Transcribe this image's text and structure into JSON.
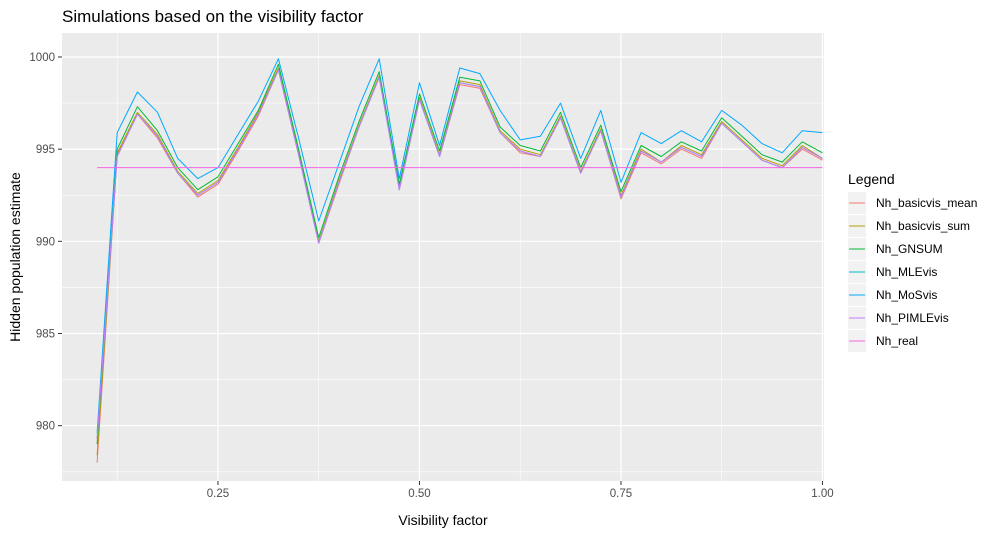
{
  "chart_data": {
    "type": "line",
    "title": "Simulations based on the visibility factor",
    "xlabel": "Visibility factor",
    "ylabel": "Hidden population estimate",
    "xlim": [
      0.1,
      1.0
    ],
    "ylim": [
      977.0,
      1001.3
    ],
    "x_ticks": [
      0.25,
      0.5,
      0.75,
      1.0
    ],
    "x_tick_labels": [
      "0.25",
      "0.50",
      "0.75",
      "1.00"
    ],
    "y_ticks": [
      980,
      985,
      990,
      995,
      1000
    ],
    "y_tick_labels": [
      "980",
      "985",
      "990",
      "995",
      "1000"
    ],
    "grid": true,
    "legend_title": "Legend",
    "legend_position": "right",
    "x": [
      0.1,
      0.125,
      0.15,
      0.175,
      0.2,
      0.225,
      0.25,
      0.275,
      0.3,
      0.325,
      0.35,
      0.375,
      0.4,
      0.425,
      0.45,
      0.475,
      0.5,
      0.525,
      0.55,
      0.575,
      0.6,
      0.625,
      0.65,
      0.675,
      0.7,
      0.725,
      0.75,
      0.775,
      0.8,
      0.825,
      0.85,
      0.875,
      0.9,
      0.925,
      0.95,
      0.975,
      1.0
    ],
    "series": [
      {
        "name": "Nh_basicvis_mean",
        "color": "#F8766D",
        "values": [
          978.0,
          994.7,
          996.9,
          995.6,
          993.7,
          992.4,
          993.1,
          994.9,
          996.8,
          999.3,
          994.7,
          989.9,
          993.1,
          996.2,
          998.9,
          992.8,
          997.7,
          994.6,
          998.5,
          998.3,
          995.9,
          994.8,
          994.6,
          996.7,
          993.7,
          996.0,
          992.3,
          994.8,
          994.2,
          995.0,
          994.5,
          996.4,
          995.4,
          994.4,
          994.0,
          995.0,
          994.4
        ]
      },
      {
        "name": "Nh_basicvis_sum",
        "color": "#B79F00",
        "values": [
          978.4,
          994.8,
          997.0,
          995.8,
          993.8,
          992.6,
          993.3,
          995.1,
          997.0,
          999.4,
          994.8,
          990.0,
          993.3,
          996.3,
          999.0,
          992.9,
          997.8,
          994.7,
          998.7,
          998.5,
          996.0,
          995.0,
          994.7,
          996.8,
          993.8,
          996.1,
          992.5,
          995.0,
          994.3,
          995.2,
          994.7,
          996.5,
          995.5,
          994.5,
          994.1,
          995.2,
          994.5
        ]
      },
      {
        "name": "Nh_GNSUM",
        "color": "#00BA38",
        "values": [
          979.0,
          995.0,
          997.3,
          996.0,
          994.0,
          992.8,
          993.5,
          995.3,
          997.1,
          999.6,
          995.0,
          990.2,
          993.5,
          996.5,
          999.2,
          993.1,
          998.0,
          994.9,
          998.9,
          998.7,
          996.2,
          995.2,
          994.9,
          997.0,
          994.0,
          996.3,
          992.7,
          995.2,
          994.6,
          995.4,
          994.9,
          996.7,
          995.7,
          994.7,
          994.3,
          995.4,
          994.8
        ]
      },
      {
        "name": "Nh_MLEvis",
        "color": "#00BFC4",
        "values": [
          979.3,
          994.6,
          996.9,
          995.7,
          993.7,
          992.5,
          993.2,
          995.0,
          996.9,
          999.3,
          994.7,
          989.9,
          993.2,
          996.2,
          998.9,
          992.8,
          997.7,
          994.6,
          998.6,
          998.4,
          995.9,
          994.9,
          994.6,
          996.7,
          993.7,
          996.0,
          992.4,
          994.9,
          994.3,
          995.1,
          994.6,
          996.4,
          995.4,
          994.4,
          994.0,
          995.1,
          994.5
        ]
      },
      {
        "name": "Nh_MoSvis",
        "color": "#00A9FF",
        "values": [
          979.6,
          995.9,
          998.1,
          997.0,
          994.5,
          993.4,
          994.0,
          995.8,
          997.6,
          999.9,
          995.6,
          991.1,
          994.2,
          997.3,
          999.9,
          993.4,
          998.6,
          995.2,
          999.4,
          999.1,
          997.1,
          995.5,
          995.7,
          997.5,
          994.5,
          997.1,
          993.2,
          995.9,
          995.3,
          996.0,
          995.4,
          997.1,
          996.3,
          995.3,
          994.8,
          996.0,
          995.9
        ]
      },
      {
        "name": "Nh_PIMLEvis",
        "color": "#C77CFF",
        "values": [
          979.3,
          994.6,
          996.9,
          995.7,
          993.7,
          992.5,
          993.2,
          995.0,
          996.9,
          999.3,
          994.7,
          989.9,
          993.2,
          996.2,
          998.9,
          992.8,
          997.7,
          994.6,
          998.6,
          998.4,
          995.9,
          994.9,
          994.6,
          996.7,
          993.7,
          996.0,
          992.4,
          994.9,
          994.3,
          995.1,
          994.6,
          996.4,
          995.4,
          994.4,
          994.0,
          995.1,
          994.5
        ]
      },
      {
        "name": "Nh_real",
        "color": "#F564E3",
        "values": [
          994.0,
          994.0,
          994.0,
          994.0,
          994.0,
          994.0,
          994.0,
          994.0,
          994.0,
          994.0,
          994.0,
          994.0,
          994.0,
          994.0,
          994.0,
          994.0,
          994.0,
          994.0,
          994.0,
          994.0,
          994.0,
          994.0,
          994.0,
          994.0,
          994.0,
          994.0,
          994.0,
          994.0,
          994.0,
          994.0,
          994.0,
          994.0,
          994.0,
          994.0,
          994.0,
          994.0,
          994.0
        ]
      }
    ]
  },
  "colors": {
    "panel_bg": "#EBEBEB",
    "grid_major": "#FFFFFF",
    "tick_text": "#4D4D4D",
    "legend_key_bg": "#F2F2F2"
  }
}
